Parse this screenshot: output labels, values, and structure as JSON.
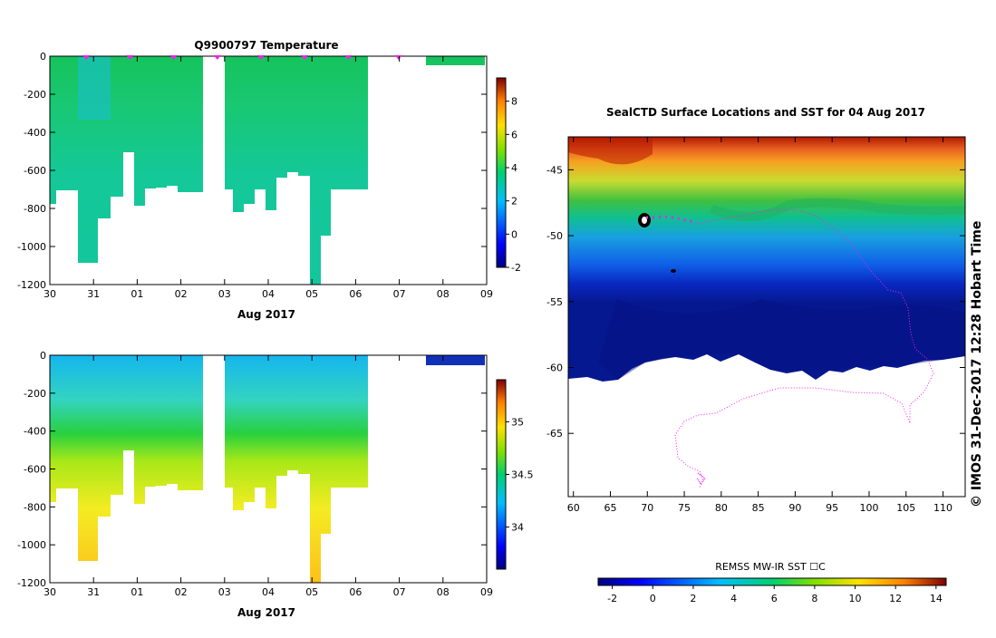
{
  "chart_data": [
    {
      "type": "heatmap",
      "title": "Q9900797  Temperature",
      "xlabel": "Aug 2017",
      "x_ticks": [
        "30",
        "31",
        "01",
        "02",
        "03",
        "04",
        "05",
        "06",
        "07",
        "08",
        "09"
      ],
      "y_ticks": [
        "0",
        "-200",
        "-400",
        "-600",
        "-800",
        "-1000",
        "-1200"
      ],
      "ylim": [
        -1200,
        0
      ],
      "xlim_days": [
        0,
        10
      ],
      "profile_day_markers": [
        1,
        2,
        3,
        4,
        5,
        6,
        7,
        9
      ],
      "colorbar": {
        "min": -2,
        "max": 9.4,
        "ticks": [
          "8",
          "6",
          "4",
          "2",
          "0",
          "-2"
        ]
      }
    },
    {
      "type": "heatmap",
      "title": "",
      "xlabel": "Aug 2017",
      "x_ticks": [
        "30",
        "31",
        "01",
        "02",
        "03",
        "04",
        "05",
        "06",
        "07",
        "08",
        "09"
      ],
      "y_ticks": [
        "0",
        "-200",
        "-400",
        "-600",
        "-800",
        "-1000",
        "-1200"
      ],
      "ylim": [
        -1200,
        0
      ],
      "colorbar": {
        "min": 33.6,
        "max": 35.4,
        "ticks": [
          "35",
          "34.5",
          "34"
        ]
      }
    },
    {
      "type": "heatmap",
      "title": "SealCTD Surface Locations and SST for 04 Aug 2017",
      "x_ticks": [
        "60",
        "65",
        "70",
        "75",
        "80",
        "85",
        "90",
        "95",
        "100",
        "105",
        "110"
      ],
      "y_ticks": [
        "-45",
        "-50",
        "-55",
        "-60",
        "-65"
      ],
      "xlim": [
        59.3,
        113
      ],
      "ylim": [
        -69.8,
        -42.5
      ],
      "colorbar": {
        "label": "REMSS MW-IR SST ☐C",
        "min": -2.7,
        "max": 14.5,
        "ticks": [
          "-2",
          "0",
          "2",
          "4",
          "6",
          "8",
          "10",
          "12",
          "14"
        ]
      }
    }
  ],
  "copyright": "©  IMOS 31-Dec-2017 12:28 Hobart Time"
}
